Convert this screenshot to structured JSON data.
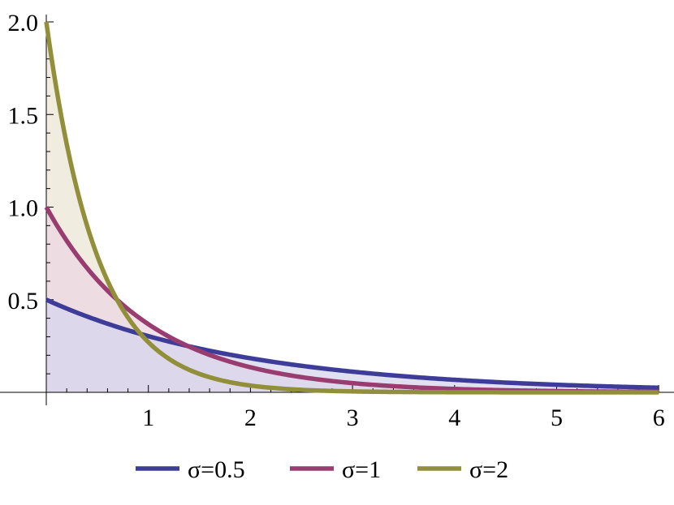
{
  "chart_data": {
    "type": "area",
    "title": "",
    "xlabel": "",
    "ylabel": "",
    "xlim": [
      0,
      6.05
    ],
    "ylim": [
      0,
      2.05
    ],
    "x_ticks": [
      1,
      2,
      3,
      4,
      5,
      6
    ],
    "x_tick_labels": [
      "1",
      "2",
      "3",
      "4",
      "5",
      "6"
    ],
    "y_ticks": [
      0.5,
      1.0,
      1.5,
      2.0
    ],
    "y_tick_labels": [
      "0.5",
      "1.0",
      "1.5",
      "2.0"
    ],
    "grid": false,
    "legend_position": "bottom",
    "filled_to_axis": true,
    "x_samples": [
      0,
      0.25,
      0.5,
      0.75,
      1,
      1.25,
      1.5,
      1.75,
      2,
      2.25,
      2.5,
      2.75,
      3,
      3.25,
      3.5,
      3.75,
      4,
      4.25,
      4.5,
      4.75,
      5,
      5.25,
      5.5,
      5.75,
      6
    ],
    "series": [
      {
        "name": "σ=0.5",
        "color": "#3d3d99",
        "fill": "#d5d5ec",
        "values": [
          0.5,
          0.441,
          0.389,
          0.344,
          0.303,
          0.268,
          0.236,
          0.208,
          0.184,
          0.162,
          0.143,
          0.126,
          0.112,
          0.098,
          0.087,
          0.077,
          0.068,
          0.06,
          0.053,
          0.047,
          0.041,
          0.036,
          0.032,
          0.028,
          0.025
        ]
      },
      {
        "name": "σ=1",
        "color": "#993d71",
        "fill": "#ecd5e2",
        "values": [
          1.0,
          0.779,
          0.607,
          0.472,
          0.368,
          0.287,
          0.223,
          0.174,
          0.135,
          0.105,
          0.082,
          0.064,
          0.05,
          0.039,
          0.03,
          0.024,
          0.018,
          0.014,
          0.011,
          0.009,
          0.007,
          0.005,
          0.004,
          0.003,
          0.002
        ]
      },
      {
        "name": "σ=2",
        "color": "#928f3a",
        "fill": "#ebe7d6",
        "values": [
          2.0,
          1.213,
          0.736,
          0.446,
          0.271,
          0.164,
          0.1,
          0.06,
          0.037,
          0.022,
          0.013,
          0.008,
          0.005,
          0.003,
          0.002,
          0.001,
          0.001,
          0.0,
          0.0,
          0.0,
          0.0,
          0.0,
          0.0,
          0.0,
          0.0
        ]
      }
    ]
  }
}
